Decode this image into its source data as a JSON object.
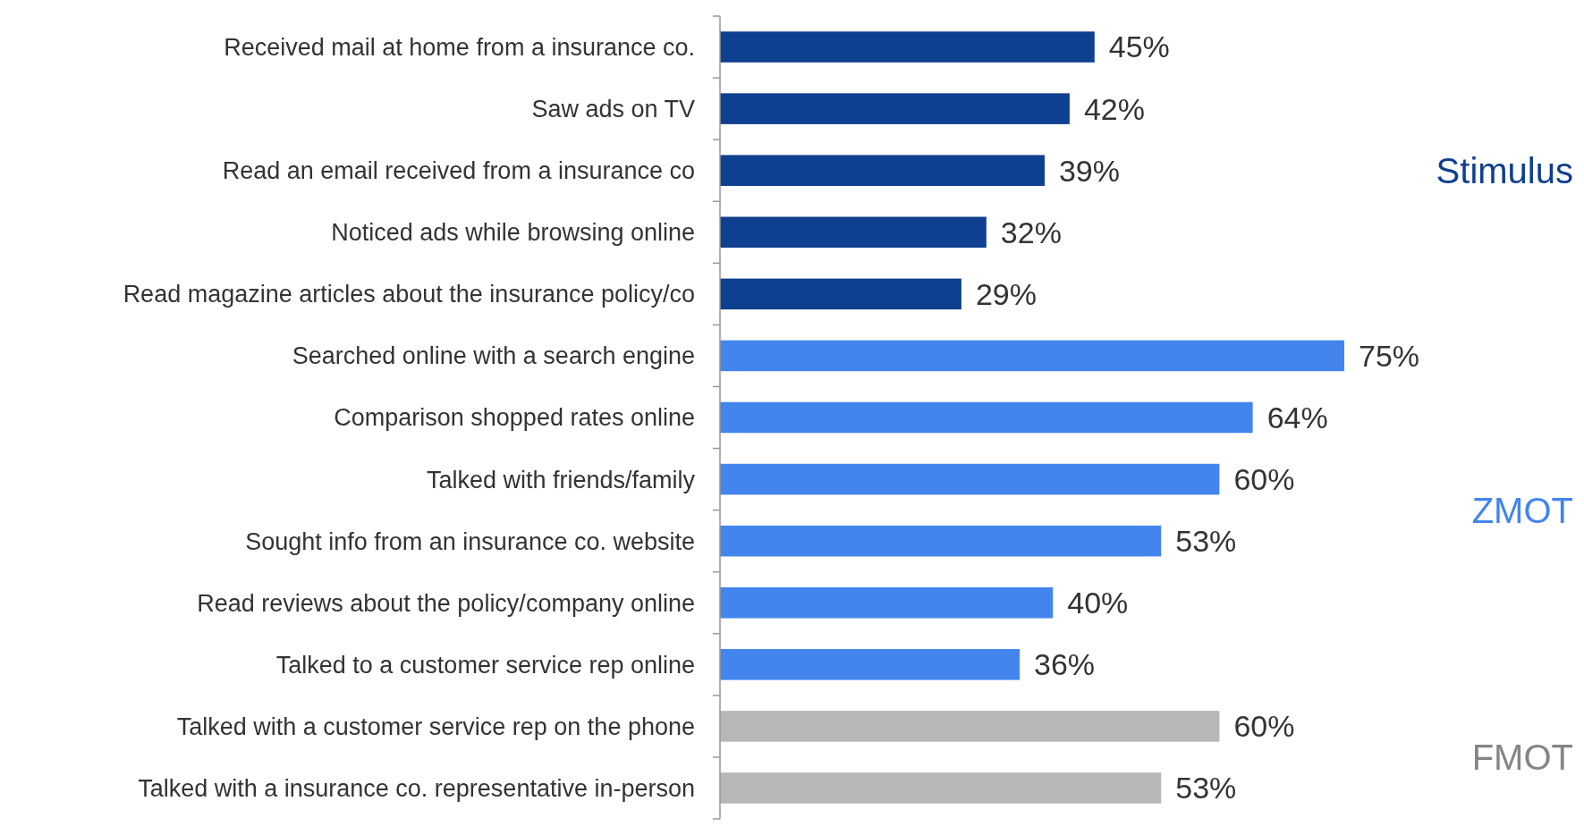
{
  "chart_data": {
    "type": "bar",
    "orientation": "horizontal",
    "categories": [
      "Received mail at home from a insurance co.",
      "Saw ads on TV",
      "Read an email received from a insurance co",
      "Noticed ads while browsing online",
      "Read magazine articles about the insurance policy/co",
      "Searched online with a search engine",
      "Comparison shopped rates online",
      "Talked with friends/family",
      "Sought info from an insurance co. website",
      "Read reviews about the policy/company online",
      "Talked to a customer service rep online",
      "Talked with a customer service rep on the phone",
      "Talked with a insurance co. representative in-person"
    ],
    "series": [
      {
        "values": [
          45,
          42,
          39,
          32,
          29,
          75,
          64,
          60,
          53,
          40,
          36,
          60,
          53
        ],
        "value_labels": [
          "45%",
          "42%",
          "39%",
          "32%",
          "29%",
          "75%",
          "64%",
          "60%",
          "53%",
          "40%",
          "36%",
          "60%",
          "53%"
        ],
        "colors": [
          "#0f3f8f",
          "#0f3f8f",
          "#0f3f8f",
          "#0f3f8f",
          "#0f3f8f",
          "#4285ed",
          "#4285ed",
          "#4285ed",
          "#4285ed",
          "#4285ed",
          "#4285ed",
          "#b7b7b7",
          "#b7b7b7"
        ]
      }
    ],
    "annotations": [
      "Stimulus",
      "ZMOT",
      "FMOT"
    ]
  }
}
